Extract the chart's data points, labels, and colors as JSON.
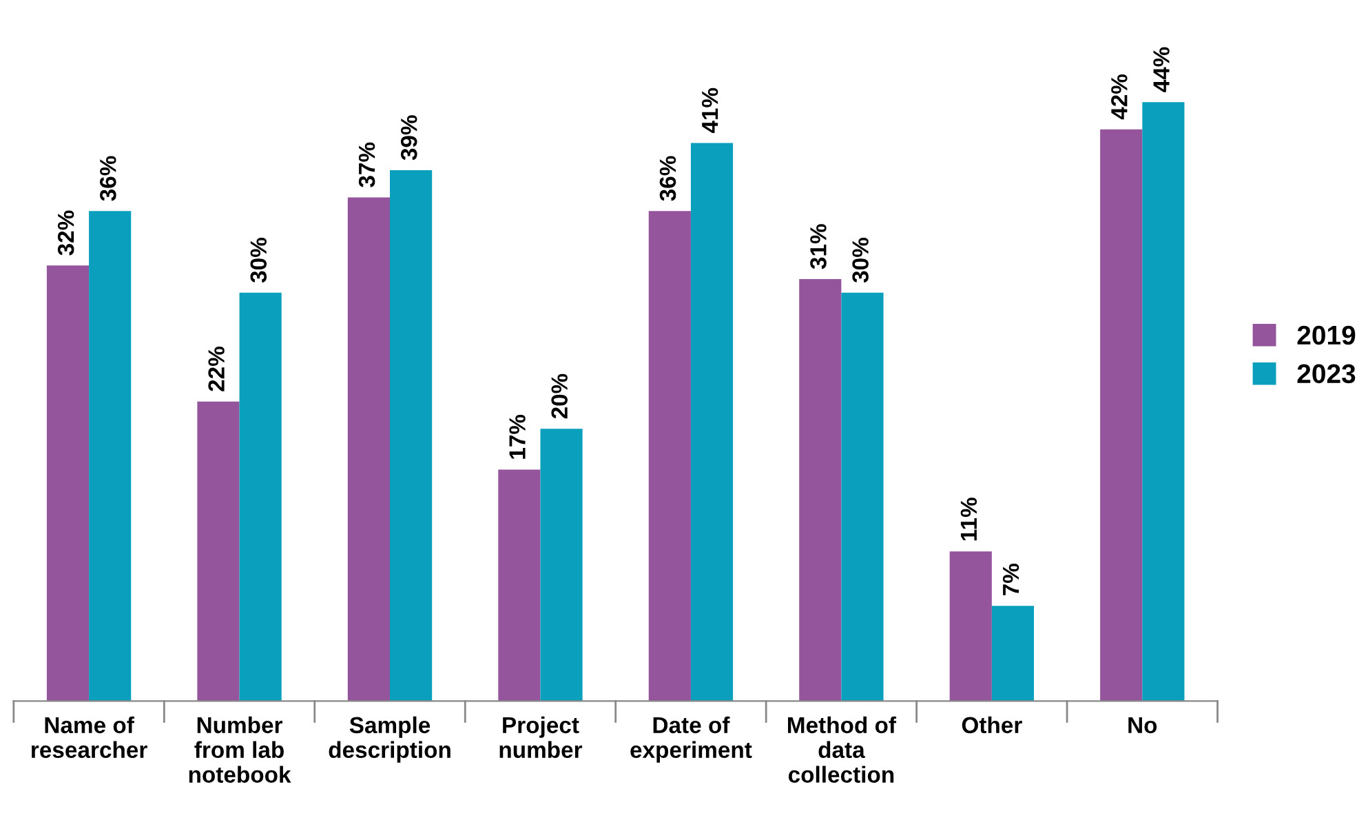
{
  "chart_data": {
    "type": "bar",
    "categories": [
      "Name of\nresearcher",
      "Number\nfrom lab\nnotebook",
      "Sample\ndescription",
      "Project\nnumber",
      "Date of\nexperiment",
      "Method of\ndata\ncollection",
      "Other",
      "No"
    ],
    "series": [
      {
        "name": "2019",
        "color": "#95559c",
        "values": [
          32,
          22,
          37,
          17,
          36,
          31,
          11,
          42
        ],
        "value_labels": [
          "32%",
          "22%",
          "37%",
          "17%",
          "36%",
          "31%",
          "11%",
          "42%"
        ]
      },
      {
        "name": "2023",
        "color": "#0a9fbd",
        "values": [
          36,
          30,
          39,
          20,
          41,
          30,
          7,
          44
        ],
        "value_labels": [
          "36%",
          "30%",
          "39%",
          "20%",
          "41%",
          "30%",
          "7%",
          "44%"
        ]
      }
    ],
    "legend": "right",
    "grid": false
  }
}
